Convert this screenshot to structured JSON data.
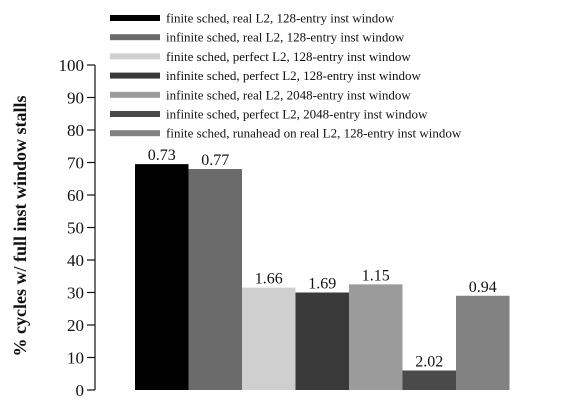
{
  "chart_data": {
    "type": "bar",
    "title": "",
    "xlabel": "",
    "ylabel": "% cycles w/ full inst window stalls",
    "ylim": [
      0,
      100
    ],
    "yticks": [
      0,
      10,
      20,
      30,
      40,
      50,
      60,
      70,
      80,
      90,
      100
    ],
    "grid": false,
    "legend_position": "top",
    "series": [
      {
        "name": "finite sched, real L2, 128-entry inst window",
        "value": 69.5,
        "label": "0.73",
        "color": "#000000"
      },
      {
        "name": "infinite sched, real L2, 128-entry inst window",
        "value": 68,
        "label": "0.77",
        "color": "#6b6b6b"
      },
      {
        "name": "finite sched, perfect L2, 128-entry inst window",
        "value": 31.5,
        "label": "1.66",
        "color": "#cfcfcf"
      },
      {
        "name": "infinite sched, perfect L2, 128-entry inst window",
        "value": 30,
        "label": "1.69",
        "color": "#3a3a3a"
      },
      {
        "name": "infinite sched, real L2, 2048-entry inst window",
        "value": 32.5,
        "label": "1.15",
        "color": "#9b9b9b"
      },
      {
        "name": "infinite sched, perfect L2, 2048-entry inst window",
        "value": 6,
        "label": "2.02",
        "color": "#4a4a4a"
      },
      {
        "name": "finite sched, runahead on real L2, 128-entry inst window",
        "value": 29,
        "label": "0.94",
        "color": "#828282"
      }
    ]
  }
}
